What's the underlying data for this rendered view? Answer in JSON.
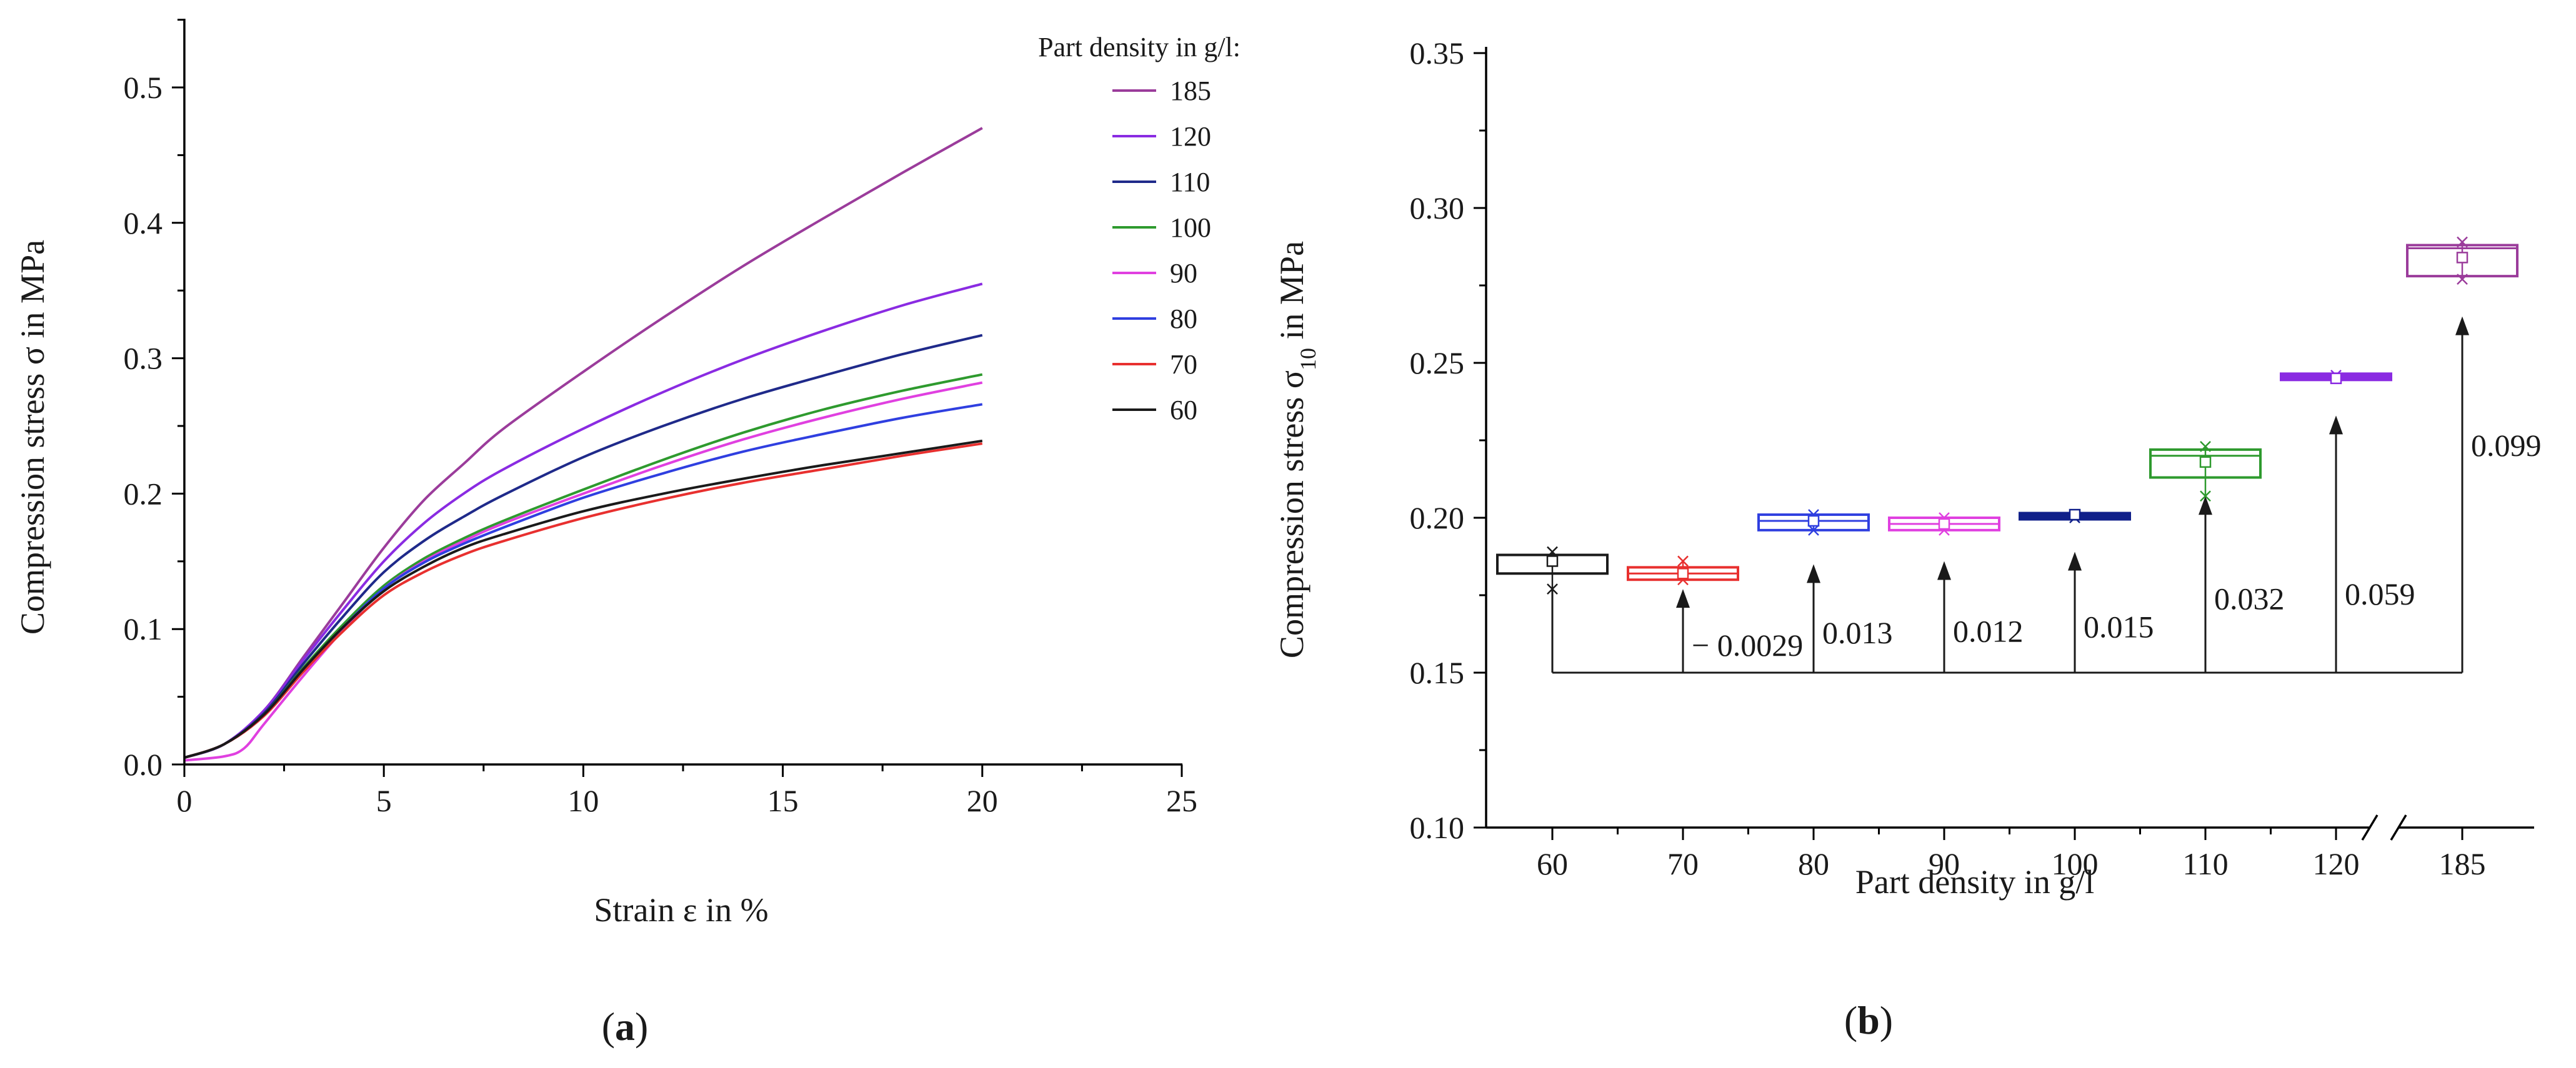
{
  "chart_data": [
    {
      "type": "line",
      "panel_label": "a",
      "xlabel": "Strain ε in %",
      "ylabel": "Compression stress σ in MPa",
      "xlim": [
        0,
        25
      ],
      "ylim": [
        0,
        0.55
      ],
      "x_ticks": [
        0,
        5,
        10,
        15,
        20,
        25
      ],
      "x_tick_labels": [
        "0",
        "5",
        "10",
        "15",
        "20",
        "25"
      ],
      "y_ticks": [
        0,
        0.1,
        0.2,
        0.3,
        0.4,
        0.5
      ],
      "y_tick_labels": [
        "0.0",
        "0.1",
        "0.2",
        "0.3",
        "0.4",
        "0.5"
      ],
      "legend_title": "Part density in g/l:",
      "legend_position": "top-right",
      "series": [
        {
          "name": "185",
          "color": "#9b3c9b",
          "x": [
            0,
            1,
            2,
            3,
            4,
            5,
            6,
            7,
            8,
            10,
            12,
            14,
            16,
            18,
            20
          ],
          "y": [
            0.005,
            0.015,
            0.04,
            0.08,
            0.12,
            0.16,
            0.195,
            0.222,
            0.248,
            0.29,
            0.33,
            0.368,
            0.403,
            0.437,
            0.47
          ]
        },
        {
          "name": "120",
          "color": "#8a2be2",
          "x": [
            0,
            1,
            2,
            3,
            4,
            5,
            6,
            7,
            8,
            10,
            12,
            14,
            16,
            18,
            20
          ],
          "y": [
            0.005,
            0.015,
            0.04,
            0.078,
            0.115,
            0.15,
            0.178,
            0.2,
            0.218,
            0.248,
            0.275,
            0.299,
            0.32,
            0.339,
            0.355
          ]
        },
        {
          "name": "110",
          "color": "#1f2a8a",
          "x": [
            0,
            1,
            2,
            3,
            4,
            5,
            6,
            7,
            8,
            10,
            12,
            14,
            16,
            18,
            20
          ],
          "y": [
            0.005,
            0.015,
            0.038,
            0.075,
            0.11,
            0.142,
            0.165,
            0.183,
            0.199,
            0.227,
            0.25,
            0.27,
            0.287,
            0.303,
            0.317
          ]
        },
        {
          "name": "100",
          "color": "#2e9a2e",
          "x": [
            0,
            1,
            2,
            3,
            4,
            5,
            6,
            7,
            8,
            10,
            12,
            14,
            16,
            18,
            20
          ],
          "y": [
            0.005,
            0.015,
            0.037,
            0.072,
            0.104,
            0.132,
            0.152,
            0.167,
            0.18,
            0.203,
            0.225,
            0.245,
            0.262,
            0.276,
            0.288
          ]
        },
        {
          "name": "90",
          "color": "#e040e0",
          "x": [
            0,
            1,
            1.5,
            2,
            3,
            4,
            5,
            6,
            7,
            8,
            10,
            12,
            14,
            16,
            18,
            20
          ],
          "y": [
            0.003,
            0.006,
            0.012,
            0.03,
            0.066,
            0.1,
            0.13,
            0.15,
            0.165,
            0.178,
            0.2,
            0.221,
            0.24,
            0.256,
            0.27,
            0.282
          ]
        },
        {
          "name": "80",
          "color": "#2f3fe0",
          "x": [
            0,
            1,
            2,
            3,
            4,
            5,
            6,
            7,
            8,
            10,
            12,
            14,
            16,
            18,
            20
          ],
          "y": [
            0.005,
            0.015,
            0.037,
            0.071,
            0.102,
            0.13,
            0.149,
            0.163,
            0.175,
            0.197,
            0.215,
            0.231,
            0.244,
            0.256,
            0.266
          ]
        },
        {
          "name": "70",
          "color": "#e8302f",
          "x": [
            0,
            1,
            2,
            3,
            4,
            5,
            6,
            7,
            8,
            10,
            12,
            14,
            16,
            18,
            20
          ],
          "y": [
            0.005,
            0.015,
            0.036,
            0.069,
            0.099,
            0.125,
            0.142,
            0.155,
            0.165,
            0.182,
            0.196,
            0.208,
            0.218,
            0.228,
            0.237
          ]
        },
        {
          "name": "60",
          "color": "#1a1a1a",
          "x": [
            0,
            1,
            2,
            3,
            4,
            5,
            6,
            7,
            8,
            10,
            12,
            14,
            16,
            18,
            20
          ],
          "y": [
            0.005,
            0.015,
            0.037,
            0.071,
            0.102,
            0.128,
            0.146,
            0.16,
            0.17,
            0.187,
            0.2,
            0.211,
            0.221,
            0.23,
            0.239
          ]
        }
      ]
    },
    {
      "type": "box",
      "panel_label": "b",
      "xlabel": "Part density in g/l",
      "ylabel_main": "Compression stress σ",
      "ylabel_sub": "10",
      "ylabel_unit": " in MPa",
      "ylim": [
        0.1,
        0.35
      ],
      "y_ticks": [
        0.1,
        0.15,
        0.2,
        0.25,
        0.3,
        0.35
      ],
      "y_tick_labels": [
        "0.10",
        "0.15",
        "0.20",
        "0.25",
        "0.30",
        "0.35"
      ],
      "categories": [
        "60",
        "70",
        "80",
        "90",
        "100",
        "110",
        "120",
        "185"
      ],
      "axis_break_between": [
        "120",
        "185"
      ],
      "reference_level": 0.15,
      "boxes": [
        {
          "category": "60",
          "color": "#1a1a1a",
          "q1": 0.182,
          "median": 0.188,
          "q3": 0.188,
          "mean": 0.186,
          "min": 0.177,
          "max": 0.189
        },
        {
          "category": "70",
          "color": "#e8302f",
          "q1": 0.18,
          "median": 0.182,
          "q3": 0.184,
          "mean": 0.182,
          "min": 0.18,
          "max": 0.186
        },
        {
          "category": "80",
          "color": "#2f3fe0",
          "q1": 0.196,
          "median": 0.199,
          "q3": 0.201,
          "mean": 0.199,
          "min": 0.196,
          "max": 0.201
        },
        {
          "category": "90",
          "color": "#e040e0",
          "q1": 0.196,
          "median": 0.198,
          "q3": 0.2,
          "mean": 0.198,
          "min": 0.196,
          "max": 0.2
        },
        {
          "category": "100",
          "color": "#10208a",
          "q1": 0.2,
          "median": 0.201,
          "q3": 0.201,
          "mean": 0.201,
          "min": 0.2,
          "max": 0.201
        },
        {
          "category": "110",
          "color": "#2e9a2e",
          "q1": 0.213,
          "median": 0.22,
          "q3": 0.222,
          "mean": 0.218,
          "min": 0.207,
          "max": 0.223
        },
        {
          "category": "120",
          "color": "#8a2be2",
          "q1": 0.245,
          "median": 0.245,
          "q3": 0.246,
          "mean": 0.245,
          "min": 0.245,
          "max": 0.246
        },
        {
          "category": "185",
          "color": "#9b3c9b",
          "q1": 0.278,
          "median": 0.287,
          "q3": 0.288,
          "mean": 0.284,
          "min": 0.277,
          "max": 0.289
        }
      ],
      "differences": [
        {
          "category": "70",
          "label": "− 0.0029",
          "arrow_top": 0.177
        },
        {
          "category": "80",
          "label": "0.013",
          "arrow_top": 0.185
        },
        {
          "category": "90",
          "label": "0.012",
          "arrow_top": 0.186
        },
        {
          "category": "100",
          "label": "0.015",
          "arrow_top": 0.189
        },
        {
          "category": "110",
          "label": "0.032",
          "arrow_top": 0.207
        },
        {
          "category": "120",
          "label": "0.059",
          "arrow_top": 0.233
        },
        {
          "category": "185",
          "label": "0.099",
          "arrow_top": 0.265
        }
      ]
    }
  ]
}
